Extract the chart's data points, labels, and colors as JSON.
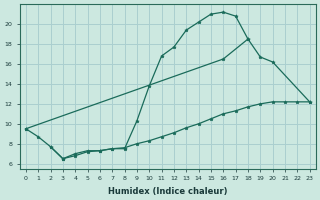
{
  "xlabel": "Humidex (Indice chaleur)",
  "bg_color": "#cce8e0",
  "grid_color": "#aacfcf",
  "line_color": "#1a6b5a",
  "ylim": [
    5.5,
    22.0
  ],
  "xlim": [
    -0.5,
    23.5
  ],
  "y_top": [
    9.5,
    8.7,
    7.7,
    6.5,
    6.8,
    7.2,
    7.3,
    7.5,
    7.5,
    10.3,
    13.8,
    16.8,
    17.7,
    19.4,
    20.2,
    21.0,
    21.2,
    20.8,
    18.5,
    null,
    null,
    null,
    null,
    null
  ],
  "y_upper": [
    9.5,
    null,
    null,
    null,
    null,
    null,
    null,
    null,
    null,
    null,
    null,
    null,
    null,
    null,
    null,
    null,
    16.5,
    null,
    18.5,
    16.7,
    16.2,
    null,
    null,
    12.2
  ],
  "y_lower": [
    null,
    null,
    7.7,
    6.5,
    7.0,
    7.3,
    7.3,
    7.5,
    7.6,
    8.0,
    8.3,
    8.7,
    9.1,
    9.6,
    10.0,
    10.5,
    11.0,
    11.3,
    11.7,
    12.0,
    12.2,
    12.2,
    12.2,
    12.2
  ]
}
